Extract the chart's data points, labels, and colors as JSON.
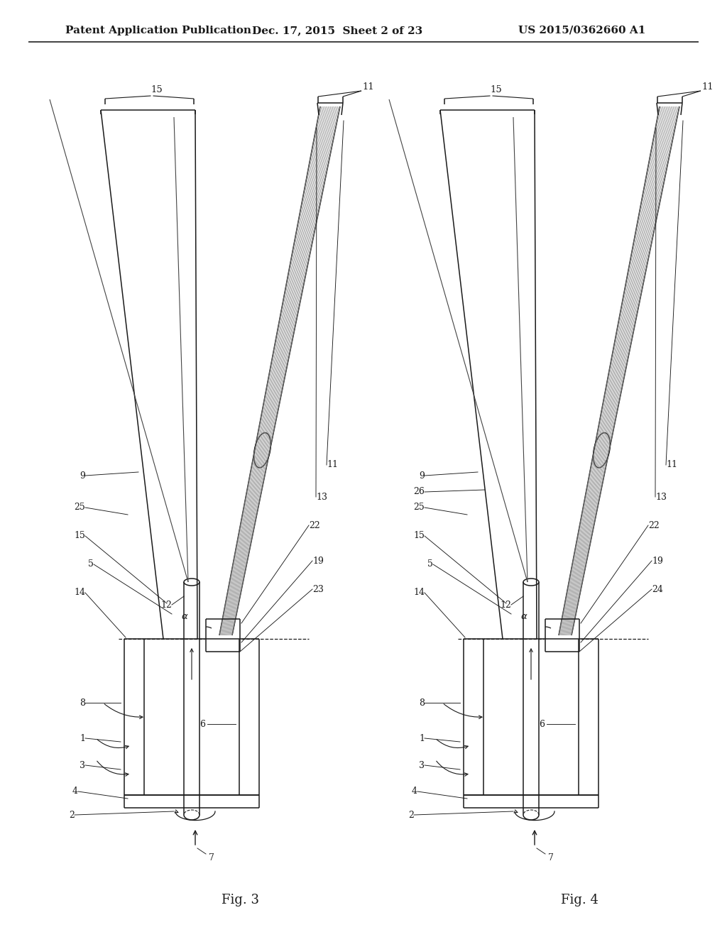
{
  "bg_color": "#ffffff",
  "line_color": "#1a1a1a",
  "header_left": "Patent Application Publication",
  "header_center": "Dec. 17, 2015  Sheet 2 of 23",
  "header_right": "US 2015/0362660 A1",
  "fig3_label": "Fig. 3",
  "fig4_label": "Fig. 4",
  "label_fontsize": 9.0,
  "header_fontsize": 11.0,
  "fig_label_fontsize": 13.0
}
